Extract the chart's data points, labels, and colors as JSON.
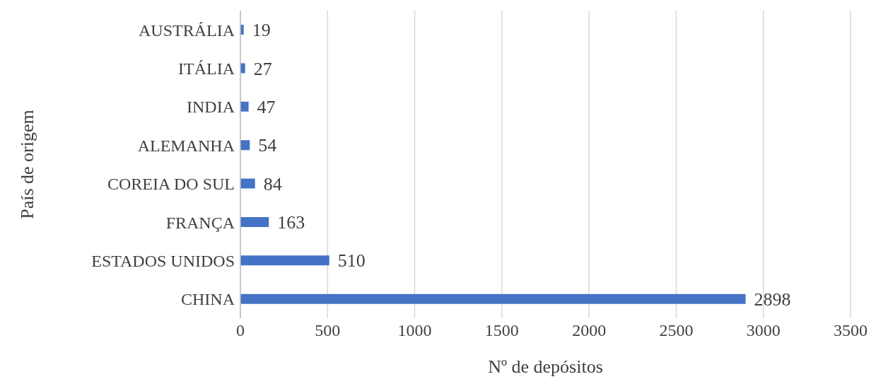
{
  "chart_data": {
    "type": "bar",
    "orientation": "horizontal",
    "xlabel": "Nº de depósitos",
    "ylabel": "País de origem",
    "categories": [
      "AUSTRÁLIA",
      "ITÁLIA",
      "INDIA",
      "ALEMANHA",
      "COREIA DO SUL",
      "FRANÇA",
      "ESTADOS UNIDOS",
      "CHINA"
    ],
    "values": [
      19,
      27,
      47,
      54,
      84,
      163,
      510,
      2898
    ],
    "color": "#4472c4",
    "xlim": [
      0,
      3500
    ],
    "xticks": [
      0,
      500,
      1000,
      1500,
      2000,
      2500,
      3000,
      3500
    ],
    "grid": "x",
    "data_labels": true
  }
}
